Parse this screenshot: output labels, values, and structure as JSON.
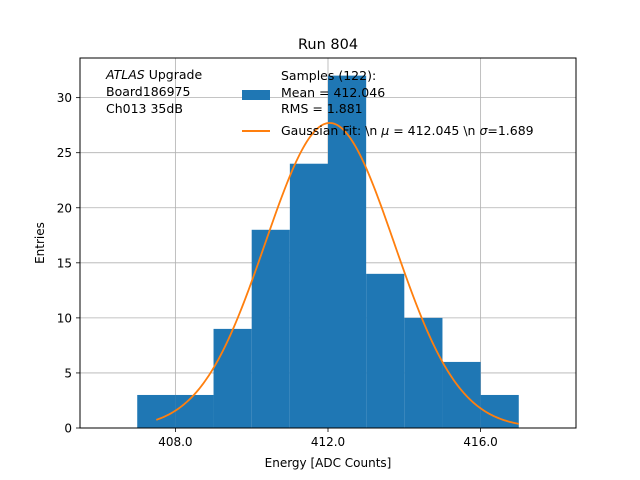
{
  "chart_data": {
    "type": "bar",
    "title": "Run 804",
    "xlabel": "Energy [ADC Counts]",
    "ylabel": "Entries",
    "xlim": [
      405.5,
      418.5
    ],
    "ylim": [
      0,
      33.6
    ],
    "grid": true,
    "x_ticks": [
      408.0,
      412.0,
      416.0
    ],
    "x_tick_labels": [
      "408.0",
      "412.0",
      "416.0"
    ],
    "y_ticks": [
      0,
      5,
      10,
      15,
      20,
      25,
      30
    ],
    "y_tick_labels": [
      "0",
      "5",
      "10",
      "15",
      "20",
      "25",
      "30"
    ],
    "histogram": {
      "bin_edges": [
        407,
        408,
        409,
        410,
        411,
        412,
        413,
        414,
        415,
        416,
        417
      ],
      "counts": [
        3,
        3,
        9,
        18,
        24,
        32,
        14,
        10,
        6,
        3
      ],
      "color": "#1f77b4"
    },
    "fit": {
      "type": "gaussian",
      "mu": 412.045,
      "sigma": 1.689,
      "peak": 27.7,
      "x_range": [
        407.5,
        417.0
      ],
      "color": "#ff7f0e"
    },
    "annotation": {
      "lines": [
        {
          "italic": "ATLAS",
          "rest": " Upgrade"
        },
        {
          "italic": "",
          "rest": " Board186975"
        },
        {
          "italic": "",
          "rest": " Ch013 35dB"
        }
      ]
    },
    "legend": {
      "placement": "top-right",
      "entries": [
        {
          "kind": "patch",
          "lines": [
            "Samples (122):",
            " Mean = 412.046",
            " RMS = 1.881"
          ]
        },
        {
          "kind": "line",
          "prefix": "Gaussian Fit: \\n ",
          "mu_sym": "μ",
          "mid": " = 412.045 \\n ",
          "sigma_sym": "σ",
          "suffix": "=1.689"
        }
      ]
    }
  }
}
